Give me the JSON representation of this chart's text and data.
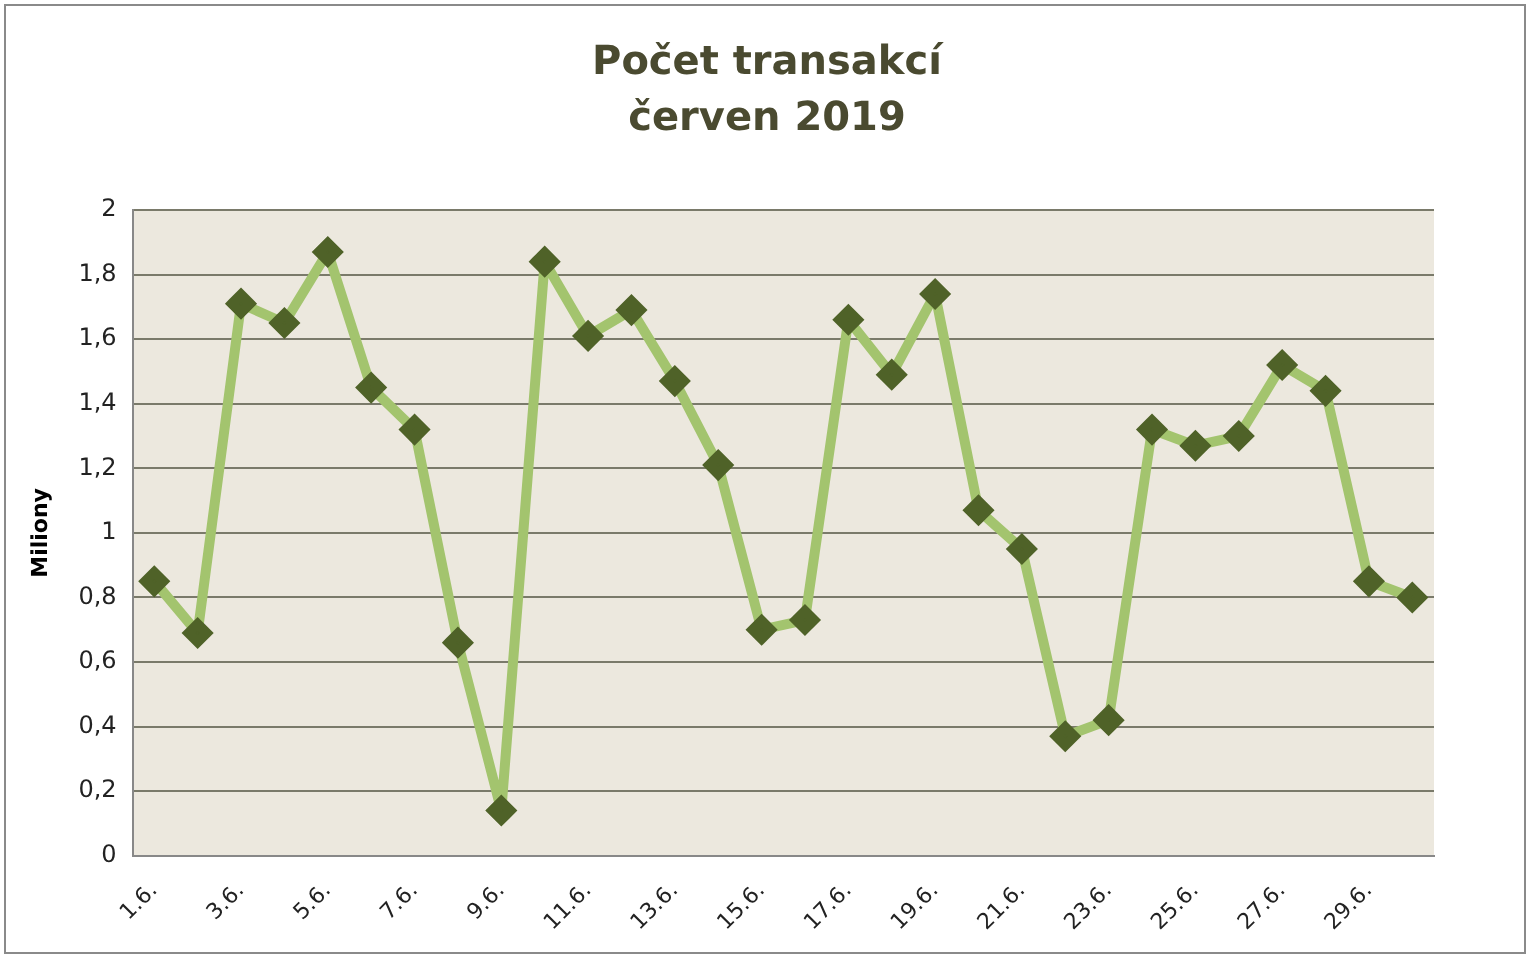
{
  "chart_data": {
    "type": "line",
    "title": "Počet transakcí",
    "subtitle": "červen 2019",
    "ylabel": "Miliony",
    "categories": [
      "1.6.",
      null,
      "3.6.",
      null,
      "5.6.",
      null,
      "7.6.",
      null,
      "9.6.",
      null,
      "11.6.",
      null,
      "13.6.",
      null,
      "15.6.",
      null,
      "17.6.",
      null,
      "19.6.",
      null,
      "21.6.",
      null,
      "23.6.",
      null,
      "25.6.",
      null,
      "27.6.",
      null,
      "29.6.",
      null
    ],
    "series": [
      {
        "color": "#a3c46e",
        "values": [
          0.85,
          0.69,
          1.71,
          1.65,
          1.87,
          1.45,
          1.32,
          0.66,
          0.14,
          1.84,
          1.61,
          1.69,
          1.47,
          1.21,
          0.7,
          0.73,
          1.66,
          1.49,
          1.74,
          1.07,
          0.95,
          0.37,
          0.42,
          1.32,
          1.27,
          1.3,
          1.52,
          1.44,
          0.85,
          0.8
        ]
      }
    ],
    "ylim": [
      0,
      2
    ],
    "yticks": [
      0,
      {
        "value": 0.2,
        "label": "0,2"
      },
      {
        "value": 0.4,
        "label": "0,4"
      },
      {
        "value": 0.6,
        "label": "0,6"
      },
      {
        "value": 0.8,
        "label": "0,8"
      },
      1,
      {
        "value": 1.2,
        "label": "1,2"
      },
      {
        "value": 1.4,
        "label": "1,4"
      },
      {
        "value": 1.6,
        "label": "1,6"
      },
      {
        "value": 1.8,
        "label": "1,8"
      },
      2
    ],
    "grid": "y",
    "legend": false,
    "marker": "diamond",
    "line_style": "solid"
  }
}
